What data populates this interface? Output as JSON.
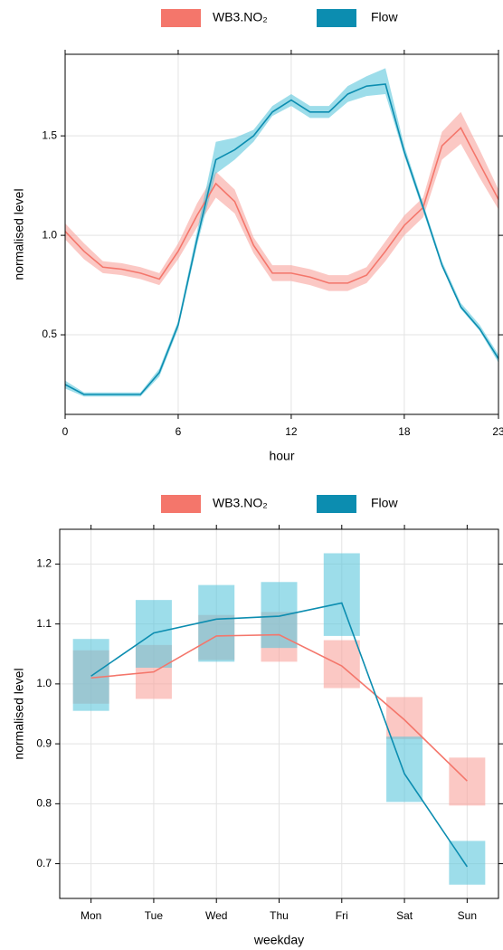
{
  "chart_data": [
    {
      "type": "line",
      "xlabel": "hour",
      "ylabel": "normalised level",
      "x": [
        0,
        1,
        2,
        3,
        4,
        5,
        6,
        7,
        8,
        9,
        10,
        11,
        12,
        13,
        14,
        15,
        16,
        17,
        18,
        19,
        20,
        21,
        22,
        23
      ],
      "xlim": [
        0,
        23
      ],
      "xticks": [
        0,
        6,
        12,
        18,
        23
      ],
      "ylim": [
        0.1,
        1.91
      ],
      "yticks": [
        0.5,
        {
          "value": 1,
          "label": "1.0"
        },
        1.5
      ],
      "grid": true,
      "series": [
        {
          "name": "WB3.NO₂",
          "color": "#f4766b",
          "band_color": "#f8a49c",
          "values": [
            1.02,
            0.92,
            0.84,
            0.83,
            0.81,
            0.78,
            0.92,
            1.1,
            1.26,
            1.17,
            0.95,
            0.81,
            0.81,
            0.79,
            0.76,
            0.76,
            0.8,
            0.92,
            1.05,
            1.14,
            1.45,
            1.54,
            1.36,
            1.18
          ],
          "lower": [
            0.98,
            0.88,
            0.81,
            0.8,
            0.78,
            0.75,
            0.88,
            1.04,
            1.19,
            1.11,
            0.91,
            0.77,
            0.77,
            0.75,
            0.72,
            0.72,
            0.76,
            0.87,
            1.0,
            1.09,
            1.38,
            1.46,
            1.29,
            1.13
          ],
          "upper": [
            1.06,
            0.96,
            0.87,
            0.86,
            0.84,
            0.81,
            0.96,
            1.16,
            1.32,
            1.23,
            0.99,
            0.85,
            0.85,
            0.83,
            0.8,
            0.8,
            0.84,
            0.97,
            1.1,
            1.19,
            1.52,
            1.62,
            1.43,
            1.23
          ]
        },
        {
          "name": "Flow",
          "color": "#0c8db0",
          "band_color": "#5cc6dc",
          "values": [
            0.25,
            0.2,
            0.2,
            0.2,
            0.2,
            0.31,
            0.55,
            0.98,
            1.38,
            1.43,
            1.5,
            1.62,
            1.68,
            1.62,
            1.62,
            1.71,
            1.75,
            1.76,
            1.42,
            1.14,
            0.85,
            0.64,
            0.53,
            0.38
          ],
          "lower": [
            0.23,
            0.19,
            0.19,
            0.19,
            0.19,
            0.29,
            0.53,
            0.95,
            1.31,
            1.38,
            1.47,
            1.6,
            1.65,
            1.59,
            1.59,
            1.67,
            1.7,
            1.71,
            1.4,
            1.12,
            0.84,
            0.63,
            0.52,
            0.36
          ],
          "upper": [
            0.27,
            0.21,
            0.21,
            0.21,
            0.21,
            0.33,
            0.57,
            1.02,
            1.47,
            1.49,
            1.53,
            1.65,
            1.71,
            1.65,
            1.65,
            1.75,
            1.8,
            1.84,
            1.45,
            1.16,
            0.87,
            0.66,
            0.55,
            0.4
          ]
        }
      ]
    },
    {
      "type": "line",
      "xlabel": "weekday",
      "ylabel": "normalised level",
      "categories": [
        "Mon",
        "Tue",
        "Wed",
        "Thu",
        "Fri",
        "Sat",
        "Sun"
      ],
      "ylim": [
        0.642,
        1.258
      ],
      "yticks": [
        0.7,
        0.8,
        0.9,
        {
          "value": 1,
          "label": "1.0"
        },
        1.1,
        1.2
      ],
      "grid": true,
      "series": [
        {
          "name": "WB3.NO₂",
          "color": "#f4766b",
          "band_color": "#f8a49c",
          "values": [
            1.01,
            1.02,
            1.08,
            1.082,
            1.03,
            0.94,
            0.838
          ],
          "lower": [
            0.967,
            0.975,
            1.04,
            1.037,
            0.993,
            0.908,
            0.797
          ],
          "upper": [
            1.056,
            1.065,
            1.115,
            1.12,
            1.073,
            0.978,
            0.877
          ]
        },
        {
          "name": "Flow",
          "color": "#0c8db0",
          "band_color": "#5cc6dc",
          "values": [
            1.013,
            1.085,
            1.108,
            1.113,
            1.135,
            0.85,
            0.695
          ],
          "lower": [
            0.955,
            1.027,
            1.037,
            1.06,
            1.08,
            0.803,
            0.665
          ],
          "upper": [
            1.075,
            1.14,
            1.165,
            1.17,
            1.218,
            0.912,
            0.738
          ]
        }
      ]
    }
  ]
}
